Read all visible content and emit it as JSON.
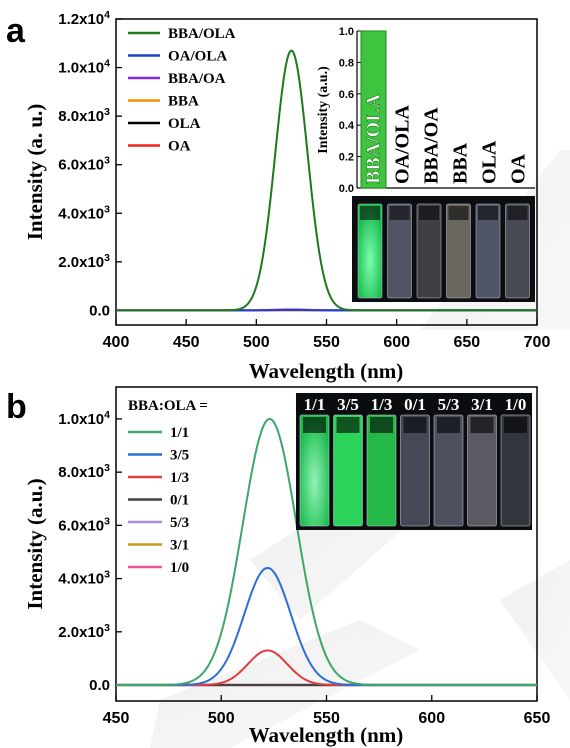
{
  "chart_data": [
    {
      "type": "line",
      "panel": "a",
      "xlabel": "Wavelength (nm)",
      "ylabel": "Intensity (a. u.)",
      "xlim": [
        400,
        700
      ],
      "ylim": [
        -600,
        12000
      ],
      "x_ticks": [
        400,
        450,
        500,
        550,
        600,
        650,
        700
      ],
      "y_ticks": [
        {
          "value": 0,
          "label": "0.0"
        },
        {
          "value": 2000,
          "label": "2.0x10^3"
        },
        {
          "value": 4000,
          "label": "4.0x10^3"
        },
        {
          "value": 6000,
          "label": "6.0x10^3"
        },
        {
          "value": 8000,
          "label": "8.0x10^3"
        },
        {
          "value": 10000,
          "label": "1.0x10^4"
        },
        {
          "value": 12000,
          "label": "1.2x10^4"
        }
      ],
      "legend_position": "top-left",
      "series": [
        {
          "name": "BBA/OLA",
          "color": "#1b7a1b",
          "peak": 525,
          "height": 10700,
          "fwhm": 27
        },
        {
          "name": "OA/OLA",
          "color": "#1f3fd1",
          "peak": 525,
          "height": 20,
          "fwhm": 30
        },
        {
          "name": "BBA/OA",
          "color": "#8a2be2",
          "peak": 525,
          "height": 40,
          "fwhm": 30
        },
        {
          "name": "BBA",
          "color": "#ff8c00",
          "peak": 525,
          "height": 0,
          "fwhm": 30
        },
        {
          "name": "OLA",
          "color": "#000000",
          "peak": 525,
          "height": 0,
          "fwhm": 30
        },
        {
          "name": "OA",
          "color": "#ee2222",
          "peak": 525,
          "height": 0,
          "fwhm": 30
        }
      ],
      "inset": {
        "ylabel": "Intensity (a.u.)",
        "ylim": [
          0,
          1.0
        ],
        "y_ticks": [
          "0.0",
          "0.2",
          "0.4",
          "0.6",
          "0.8",
          "1.0"
        ],
        "categories": [
          "BBA/OLA",
          "OA/OLA",
          "BBA/OA",
          "BBA",
          "OLA",
          "OA"
        ],
        "values": [
          1.0,
          0,
          0,
          0,
          0,
          0
        ],
        "bar_color": "#3fc43f",
        "photo": {
          "cuvette_colors": [
            "#2ee86a",
            "#8b93a8",
            "#6b6b70",
            "#b9b2a0",
            "#8a92b0",
            "#7c808c"
          ]
        }
      }
    },
    {
      "type": "line",
      "panel": "b",
      "xlabel": "Wavelength (nm)",
      "ylabel": "Intensity (a.u.)",
      "xlim": [
        450,
        650
      ],
      "ylim": [
        -600,
        11200
      ],
      "x_ticks": [
        450,
        500,
        550,
        600,
        650
      ],
      "y_ticks": [
        {
          "value": 0,
          "label": "0.0"
        },
        {
          "value": 2000,
          "label": "2.0x10^3"
        },
        {
          "value": 4000,
          "label": "4.0x10^3"
        },
        {
          "value": 6000,
          "label": "6.0x10^3"
        },
        {
          "value": 8000,
          "label": "8.0x10^3"
        },
        {
          "value": 10000,
          "label": "1.0x10^4"
        }
      ],
      "legend_title": "BBA:OLA =",
      "legend_position": "top-left",
      "series": [
        {
          "name": "1/1",
          "color": "#3da66b",
          "peak": 523,
          "height": 10000,
          "fwhm": 30
        },
        {
          "name": "3/5",
          "color": "#2b6fd6",
          "peak": 522,
          "height": 4400,
          "fwhm": 26
        },
        {
          "name": "1/3",
          "color": "#e33b3b",
          "peak": 522,
          "height": 1300,
          "fwhm": 22
        },
        {
          "name": "0/1",
          "color": "#444444",
          "peak": 522,
          "height": 0,
          "fwhm": 25
        },
        {
          "name": "5/3",
          "color": "#a98be0",
          "peak": 522,
          "height": 0,
          "fwhm": 25
        },
        {
          "name": "3/1",
          "color": "#c99a1a",
          "peak": 522,
          "height": 0,
          "fwhm": 25
        },
        {
          "name": "1/0",
          "color": "#ee5599",
          "peak": 522,
          "height": 0,
          "fwhm": 25
        }
      ],
      "inset_photo": {
        "labels": [
          "1/1",
          "3/5",
          "1/3",
          "0/1",
          "5/3",
          "3/1",
          "1/0"
        ],
        "cuvette_colors": [
          "#34f07a",
          "#2ee05e",
          "#25c24c",
          "#7f86a0",
          "#8f94ad",
          "#a7a7b8",
          "#5b6070"
        ]
      }
    }
  ],
  "panels": {
    "a": "a",
    "b": "b"
  }
}
